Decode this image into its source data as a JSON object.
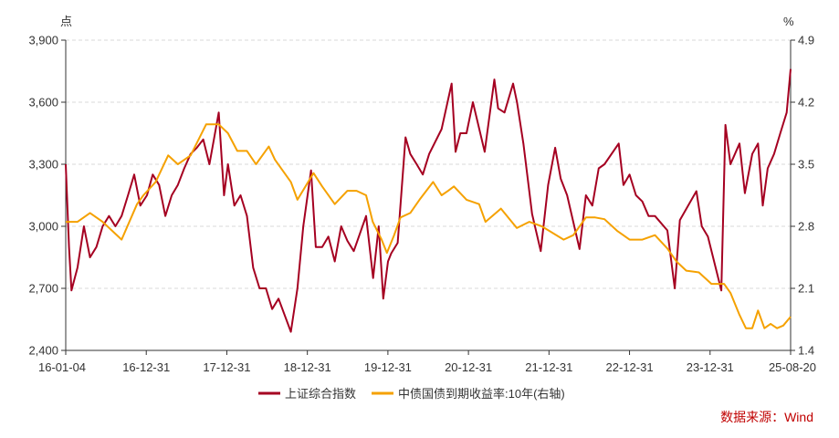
{
  "chart_data": {
    "type": "line",
    "left_unit": "点",
    "right_unit": "%",
    "x_tick_labels": [
      "16-01-04",
      "16-12-31",
      "17-12-31",
      "18-12-31",
      "19-12-31",
      "20-12-31",
      "21-12-31",
      "22-12-31",
      "23-12-31",
      "25-08-20"
    ],
    "x_range": [
      "2016-01-04",
      "2025-08-20"
    ],
    "y_left": {
      "lim": [
        2400,
        3900
      ],
      "ticks": [
        "2,400",
        "2,700",
        "3,000",
        "3,300",
        "3,600",
        "3,900"
      ],
      "tick_values": [
        2400,
        2700,
        3000,
        3300,
        3600,
        3900
      ]
    },
    "y_right": {
      "lim": [
        1.4,
        4.9
      ],
      "ticks": [
        "1.4",
        "2.1",
        "2.8",
        "3.5",
        "4.2",
        "4.9"
      ],
      "tick_values": [
        1.4,
        2.1,
        2.8,
        3.5,
        4.2,
        4.9
      ]
    },
    "grid": true,
    "legend_position": "bottom",
    "series": [
      {
        "name": "上证综合指数",
        "axis": "left",
        "color": "#a50021",
        "points": [
          [
            "2016-01-04",
            3300
          ],
          [
            "2016-01-20",
            2900
          ],
          [
            "2016-02-01",
            2690
          ],
          [
            "2016-03-01",
            2800
          ],
          [
            "2016-04-01",
            3000
          ],
          [
            "2016-05-01",
            2850
          ],
          [
            "2016-06-01",
            2900
          ],
          [
            "2016-07-01",
            3000
          ],
          [
            "2016-08-01",
            3050
          ],
          [
            "2016-09-01",
            3000
          ],
          [
            "2016-10-01",
            3050
          ],
          [
            "2016-11-01",
            3150
          ],
          [
            "2016-12-01",
            3250
          ],
          [
            "2016-12-31",
            3100
          ],
          [
            "2017-02-01",
            3150
          ],
          [
            "2017-03-01",
            3250
          ],
          [
            "2017-04-01",
            3200
          ],
          [
            "2017-05-01",
            3050
          ],
          [
            "2017-06-01",
            3150
          ],
          [
            "2017-07-01",
            3200
          ],
          [
            "2017-08-01",
            3280
          ],
          [
            "2017-09-01",
            3350
          ],
          [
            "2017-10-01",
            3380
          ],
          [
            "2017-11-01",
            3420
          ],
          [
            "2017-12-01",
            3300
          ],
          [
            "2018-01-15",
            3550
          ],
          [
            "2018-02-10",
            3150
          ],
          [
            "2018-03-01",
            3300
          ],
          [
            "2018-04-01",
            3100
          ],
          [
            "2018-05-01",
            3150
          ],
          [
            "2018-06-01",
            3050
          ],
          [
            "2018-07-01",
            2800
          ],
          [
            "2018-08-01",
            2700
          ],
          [
            "2018-09-01",
            2700
          ],
          [
            "2018-10-01",
            2600
          ],
          [
            "2018-11-01",
            2650
          ],
          [
            "2018-12-31",
            2490
          ],
          [
            "2019-02-01",
            2700
          ],
          [
            "2019-03-01",
            3000
          ],
          [
            "2019-04-08",
            3270
          ],
          [
            "2019-05-01",
            2900
          ],
          [
            "2019-06-01",
            2900
          ],
          [
            "2019-07-01",
            2950
          ],
          [
            "2019-08-01",
            2830
          ],
          [
            "2019-09-01",
            3000
          ],
          [
            "2019-10-01",
            2930
          ],
          [
            "2019-11-01",
            2880
          ],
          [
            "2019-12-31",
            3050
          ],
          [
            "2020-02-03",
            2750
          ],
          [
            "2020-03-01",
            3000
          ],
          [
            "2020-03-23",
            2650
          ],
          [
            "2020-04-15",
            2830
          ],
          [
            "2020-05-01",
            2870
          ],
          [
            "2020-06-01",
            2920
          ],
          [
            "2020-07-09",
            3430
          ],
          [
            "2020-08-01",
            3350
          ],
          [
            "2020-09-01",
            3300
          ],
          [
            "2020-10-01",
            3250
          ],
          [
            "2020-11-01",
            3350
          ],
          [
            "2020-12-31",
            3470
          ],
          [
            "2021-02-18",
            3690
          ],
          [
            "2021-03-09",
            3360
          ],
          [
            "2021-04-01",
            3450
          ],
          [
            "2021-05-01",
            3450
          ],
          [
            "2021-06-01",
            3600
          ],
          [
            "2021-07-28",
            3360
          ],
          [
            "2021-09-13",
            3710
          ],
          [
            "2021-10-01",
            3570
          ],
          [
            "2021-11-01",
            3550
          ],
          [
            "2021-12-13",
            3690
          ],
          [
            "2022-01-01",
            3600
          ],
          [
            "2022-02-01",
            3400
          ],
          [
            "2022-03-15",
            3060
          ],
          [
            "2022-04-26",
            2880
          ],
          [
            "2022-06-01",
            3200
          ],
          [
            "2022-07-05",
            3380
          ],
          [
            "2022-08-01",
            3230
          ],
          [
            "2022-09-01",
            3150
          ],
          [
            "2022-10-31",
            2890
          ],
          [
            "2022-12-01",
            3150
          ],
          [
            "2023-01-01",
            3100
          ],
          [
            "2023-02-01",
            3280
          ],
          [
            "2023-03-01",
            3300
          ],
          [
            "2023-05-09",
            3400
          ],
          [
            "2023-06-01",
            3200
          ],
          [
            "2023-07-01",
            3250
          ],
          [
            "2023-08-01",
            3150
          ],
          [
            "2023-09-01",
            3120
          ],
          [
            "2023-10-01",
            3050
          ],
          [
            "2023-11-01",
            3050
          ],
          [
            "2023-12-31",
            2980
          ],
          [
            "2024-02-05",
            2700
          ],
          [
            "2024-03-01",
            3030
          ],
          [
            "2024-05-20",
            3170
          ],
          [
            "2024-06-15",
            3000
          ],
          [
            "2024-07-15",
            2950
          ],
          [
            "2024-09-18",
            2690
          ],
          [
            "2024-10-08",
            3490
          ],
          [
            "2024-11-01",
            3300
          ],
          [
            "2024-12-15",
            3400
          ],
          [
            "2025-01-10",
            3160
          ],
          [
            "2025-02-15",
            3350
          ],
          [
            "2025-03-15",
            3400
          ],
          [
            "2025-04-07",
            3100
          ],
          [
            "2025-05-01",
            3280
          ],
          [
            "2025-06-01",
            3350
          ],
          [
            "2025-07-01",
            3450
          ],
          [
            "2025-08-01",
            3550
          ],
          [
            "2025-08-20",
            3760
          ]
        ]
      },
      {
        "name": "中债国债到期收益率:10年(右轴)",
        "axis": "right",
        "color": "#f5a100",
        "points": [
          [
            "2016-01-04",
            2.85
          ],
          [
            "2016-03-01",
            2.85
          ],
          [
            "2016-05-01",
            2.95
          ],
          [
            "2016-07-01",
            2.85
          ],
          [
            "2016-10-01",
            2.65
          ],
          [
            "2016-12-15",
            3.05
          ],
          [
            "2017-01-15",
            3.15
          ],
          [
            "2017-03-15",
            3.3
          ],
          [
            "2017-05-15",
            3.6
          ],
          [
            "2017-07-01",
            3.5
          ],
          [
            "2017-09-01",
            3.6
          ],
          [
            "2017-11-15",
            3.95
          ],
          [
            "2018-01-15",
            3.95
          ],
          [
            "2018-03-01",
            3.85
          ],
          [
            "2018-04-15",
            3.65
          ],
          [
            "2018-06-01",
            3.65
          ],
          [
            "2018-07-15",
            3.5
          ],
          [
            "2018-08-15",
            3.6
          ],
          [
            "2018-09-15",
            3.7
          ],
          [
            "2018-10-15",
            3.55
          ],
          [
            "2018-12-31",
            3.3
          ],
          [
            "2019-02-01",
            3.1
          ],
          [
            "2019-04-20",
            3.4
          ],
          [
            "2019-06-01",
            3.25
          ],
          [
            "2019-08-01",
            3.05
          ],
          [
            "2019-10-01",
            3.2
          ],
          [
            "2019-11-15",
            3.2
          ],
          [
            "2019-12-31",
            3.15
          ],
          [
            "2020-02-01",
            2.85
          ],
          [
            "2020-03-15",
            2.65
          ],
          [
            "2020-04-10",
            2.5
          ],
          [
            "2020-05-15",
            2.7
          ],
          [
            "2020-06-15",
            2.9
          ],
          [
            "2020-08-01",
            2.95
          ],
          [
            "2020-09-15",
            3.1
          ],
          [
            "2020-11-20",
            3.3
          ],
          [
            "2020-12-31",
            3.15
          ],
          [
            "2021-02-01",
            3.2
          ],
          [
            "2021-03-01",
            3.25
          ],
          [
            "2021-05-01",
            3.1
          ],
          [
            "2021-07-01",
            3.05
          ],
          [
            "2021-08-01",
            2.85
          ],
          [
            "2021-10-15",
            3.0
          ],
          [
            "2021-12-31",
            2.78
          ],
          [
            "2022-03-01",
            2.85
          ],
          [
            "2022-05-01",
            2.8
          ],
          [
            "2022-08-15",
            2.65
          ],
          [
            "2022-10-01",
            2.7
          ],
          [
            "2022-12-01",
            2.9
          ],
          [
            "2023-01-15",
            2.9
          ],
          [
            "2023-03-01",
            2.88
          ],
          [
            "2023-05-01",
            2.75
          ],
          [
            "2023-07-01",
            2.65
          ],
          [
            "2023-09-01",
            2.65
          ],
          [
            "2023-11-01",
            2.7
          ],
          [
            "2023-12-31",
            2.55
          ],
          [
            "2024-02-15",
            2.4
          ],
          [
            "2024-04-01",
            2.3
          ],
          [
            "2024-06-01",
            2.28
          ],
          [
            "2024-08-01",
            2.15
          ],
          [
            "2024-10-01",
            2.15
          ],
          [
            "2024-11-01",
            2.05
          ],
          [
            "2024-12-15",
            1.8
          ],
          [
            "2025-01-15",
            1.65
          ],
          [
            "2025-02-15",
            1.65
          ],
          [
            "2025-03-15",
            1.85
          ],
          [
            "2025-04-15",
            1.65
          ],
          [
            "2025-05-15",
            1.7
          ],
          [
            "2025-06-15",
            1.65
          ],
          [
            "2025-07-15",
            1.68
          ],
          [
            "2025-08-20",
            1.78
          ]
        ]
      }
    ]
  },
  "source": "数据来源：Wind"
}
